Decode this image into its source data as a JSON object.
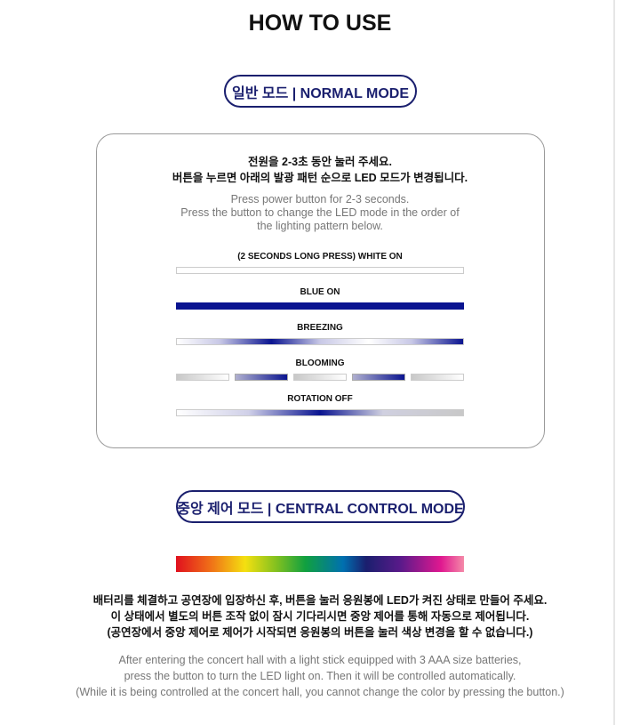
{
  "title": "HOW TO USE",
  "normal": {
    "pill": "일반 모드 | NORMAL MODE",
    "ko": [
      "전원을 2-3초 동안 눌러 주세요.",
      "버튼을 누르면 아래의 발광 패턴 순으로 LED 모드가 변경됩니다."
    ],
    "en": [
      "Press power button for 2-3 seconds.",
      "Press the button to change the LED mode in the order of",
      "the lighting pattern below."
    ],
    "patterns": [
      "(2 SECONDS LONG PRESS) WHITE ON",
      "BLUE ON",
      "BREEZING",
      "BLOOMING",
      "ROTATION OFF"
    ]
  },
  "central": {
    "pill": "중앙 제어 모드 | CENTRAL CONTROL MODE",
    "ko": [
      "배터리를 체결하고 공연장에 입장하신 후, 버튼을 눌러 응원봉에 LED가 켜진 상태로 만들어 주세요.",
      "이 상태에서 별도의 버튼 조작 없이 잠시 기다리시면 중앙 제어를 통해 자동으로 제어됩니다.",
      "(공연장에서 중앙 제어로 제어가 시작되면 응원봉의 버튼을 눌러 색상 변경을 할 수 없습니다.)"
    ],
    "en": [
      "After entering the concert hall with a light stick equipped with 3 AAA size batteries,",
      "press the button to turn the LED light on. Then it will be controlled automatically.",
      "(While it is being controlled at the concert hall, you cannot change the color by pressing the button.)"
    ]
  },
  "colors": {
    "brand": "#1a1f6e",
    "blue": "#0a1490"
  }
}
